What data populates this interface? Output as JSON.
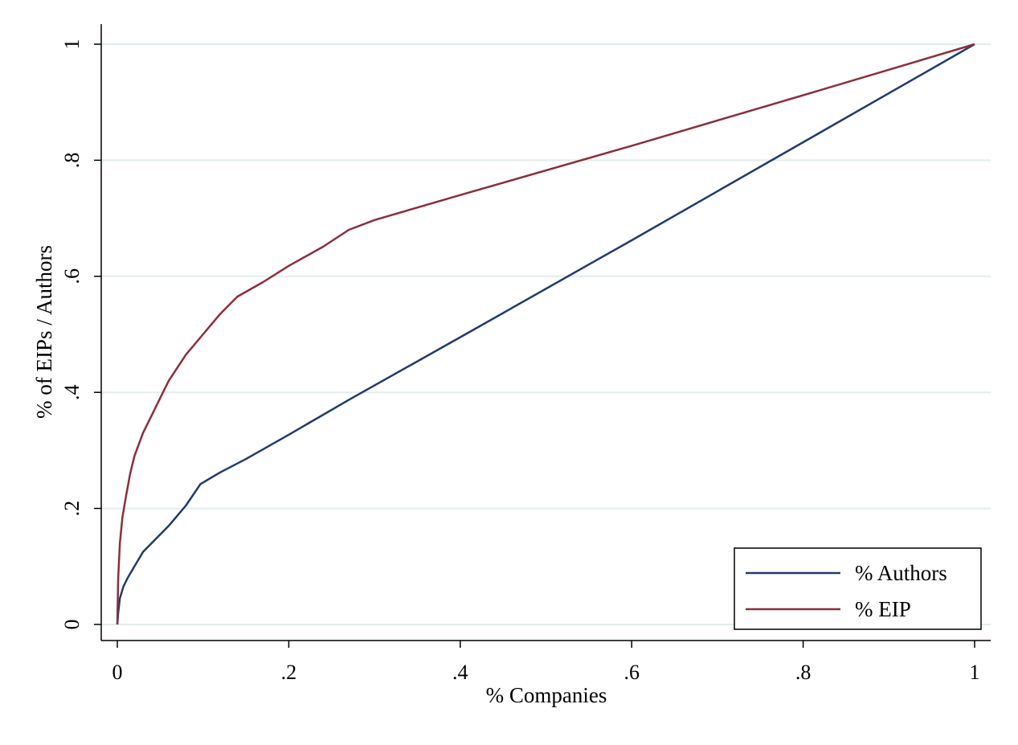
{
  "chart_data": {
    "type": "line",
    "title": "",
    "xlabel": "% Companies",
    "ylabel": "% of EIPs / Authors",
    "xlim": [
      0,
      1
    ],
    "ylim": [
      0,
      1
    ],
    "x_ticks": [
      "0",
      ".2",
      ".4",
      ".6",
      ".8",
      "1"
    ],
    "y_ticks": [
      "0",
      ".2",
      ".4",
      ".6",
      ".8",
      "1"
    ],
    "grid": "horizontal",
    "legend_position": "bottom-right",
    "series": [
      {
        "name": "% Authors",
        "color": "#1f3c6a",
        "points": [
          [
            0,
            0
          ],
          [
            0.001,
            0.02
          ],
          [
            0.003,
            0.045
          ],
          [
            0.007,
            0.065
          ],
          [
            0.012,
            0.08
          ],
          [
            0.02,
            0.1
          ],
          [
            0.03,
            0.125
          ],
          [
            0.04,
            0.14
          ],
          [
            0.06,
            0.17
          ],
          [
            0.08,
            0.205
          ],
          [
            0.097,
            0.242
          ],
          [
            0.12,
            0.262
          ],
          [
            0.15,
            0.285
          ],
          [
            0.2,
            0.327
          ],
          [
            0.27,
            0.387
          ],
          [
            0.4,
            0.495
          ],
          [
            0.6,
            0.662
          ],
          [
            0.8,
            0.831
          ],
          [
            1,
            1
          ]
        ]
      },
      {
        "name": "% EIP",
        "color": "#8b2e3c",
        "points": [
          [
            0,
            0
          ],
          [
            0.001,
            0.08
          ],
          [
            0.003,
            0.14
          ],
          [
            0.006,
            0.185
          ],
          [
            0.01,
            0.22
          ],
          [
            0.015,
            0.26
          ],
          [
            0.02,
            0.29
          ],
          [
            0.03,
            0.33
          ],
          [
            0.04,
            0.36
          ],
          [
            0.05,
            0.39
          ],
          [
            0.06,
            0.42
          ],
          [
            0.08,
            0.465
          ],
          [
            0.1,
            0.5
          ],
          [
            0.12,
            0.535
          ],
          [
            0.14,
            0.565
          ],
          [
            0.17,
            0.59
          ],
          [
            0.2,
            0.618
          ],
          [
            0.24,
            0.651
          ],
          [
            0.27,
            0.68
          ],
          [
            0.3,
            0.697
          ],
          [
            0.4,
            0.74
          ],
          [
            0.6,
            0.825
          ],
          [
            0.8,
            0.912
          ],
          [
            1,
            1
          ]
        ]
      }
    ]
  }
}
